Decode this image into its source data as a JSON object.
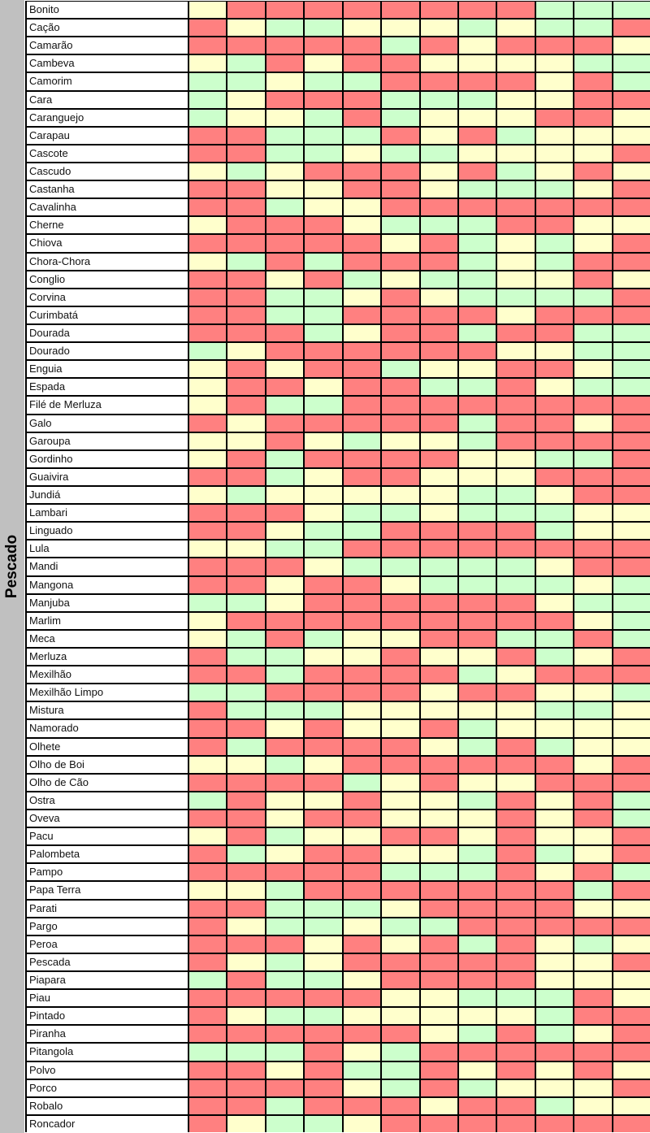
{
  "category_label": "Pescado",
  "colors": {
    "R": "#ff8080",
    "Y": "#ffffcc",
    "G": "#ccffcc"
  },
  "rows": [
    {
      "name": "Bonito",
      "cells": "YRRRRRRRRGGG"
    },
    {
      "name": "Cação",
      "cells": "RYGGYYYGYGGR"
    },
    {
      "name": "Camarão",
      "cells": "RRRRRGRYRRRY"
    },
    {
      "name": "Cambeva",
      "cells": "YGRYRRYYYYGG"
    },
    {
      "name": "Camorim",
      "cells": "GGYGGRRRRYRG"
    },
    {
      "name": "Cara",
      "cells": "GYRRRGGGYYRR"
    },
    {
      "name": "Caranguejo",
      "cells": "GYYGRGYYYRRY"
    },
    {
      "name": "Carapau",
      "cells": "RRGGGRYRGYYY"
    },
    {
      "name": "Cascote",
      "cells": "RRGGYGGYYYYR"
    },
    {
      "name": "Cascudo",
      "cells": "YGYRRRYRGYRY"
    },
    {
      "name": "Castanha",
      "cells": "RRYYRRYGGGYR"
    },
    {
      "name": "Cavalinha",
      "cells": "RRGYYRRRRRRR"
    },
    {
      "name": "Cherne",
      "cells": "YRRRYGGGRRYY"
    },
    {
      "name": "Chiova",
      "cells": "RRRRRYRGYGYR"
    },
    {
      "name": "Chora-Chora",
      "cells": "YGRGRRRGYGRR"
    },
    {
      "name": "Conglio",
      "cells": "RRYRGYGGYYRY"
    },
    {
      "name": "Corvina",
      "cells": "RRGGYRYGGGGR"
    },
    {
      "name": "Curimbatá",
      "cells": "RRGGRRRRYRRR"
    },
    {
      "name": "Dourada",
      "cells": "RRRGYRRGRRGG"
    },
    {
      "name": "Dourado",
      "cells": "GYRRRRRRYYGG"
    },
    {
      "name": "Enguia",
      "cells": "YRYRRGYYRRYG"
    },
    {
      "name": "Espada",
      "cells": "YRRYRRGGRYGG"
    },
    {
      "name": "Filé de Merluza",
      "cells": "YRGGRRRRRRRR"
    },
    {
      "name": "Galo",
      "cells": "RYRRRRRGRRYR"
    },
    {
      "name": "Garoupa",
      "cells": "YYRYGYYGRRRR"
    },
    {
      "name": "Gordinho",
      "cells": "YRGRRRRYYGGR"
    },
    {
      "name": "Guaivira",
      "cells": "RRGYRRYYYRRR"
    },
    {
      "name": "Jundiá",
      "cells": "YGYYYYYGGYRR"
    },
    {
      "name": "Lambari",
      "cells": "RRRYGGYGGGYY"
    },
    {
      "name": "Linguado",
      "cells": "RRYGGRRRRGYY"
    },
    {
      "name": "Lula",
      "cells": "YYGGRRRRRRRR"
    },
    {
      "name": "Mandi",
      "cells": "RRRYGGGGGYRR"
    },
    {
      "name": "Mangona",
      "cells": "RRYRRYGGGGYG"
    },
    {
      "name": "Manjuba",
      "cells": "GGYRRRRRRYGG"
    },
    {
      "name": "Marlim",
      "cells": "YRRRRRRRRRYG"
    },
    {
      "name": "Meca",
      "cells": "YGRGYYRRGGRG"
    },
    {
      "name": "Merluza",
      "cells": "RGGYYRYYRGYR"
    },
    {
      "name": "Mexilhão",
      "cells": "RRGRRRRGYRRR"
    },
    {
      "name": "Mexilhão Limpo",
      "cells": "GGRRRRYRRYYG"
    },
    {
      "name": "Mistura",
      "cells": "RGGGYYYYYGGY"
    },
    {
      "name": "Namorado",
      "cells": "RRYRYYRGYYYY"
    },
    {
      "name": "Olhete",
      "cells": "RGRRRRYGRGYY"
    },
    {
      "name": "Olho de Boi",
      "cells": "YYGYRRRRRRYR"
    },
    {
      "name": "Olho de Cão",
      "cells": "RRRRGYRYYRRR"
    },
    {
      "name": "Ostra",
      "cells": "GRYYRYYGRYRG"
    },
    {
      "name": "Oveva",
      "cells": "RRYRRYYYRYRG"
    },
    {
      "name": "Pacu",
      "cells": "YRGYYRRYRYYR"
    },
    {
      "name": "Palombeta",
      "cells": "RGYRRYYGRGYR"
    },
    {
      "name": "Pampo",
      "cells": "RRRRRGGGRYRG"
    },
    {
      "name": "Papa Terra",
      "cells": "YYGRRRRRRRGR"
    },
    {
      "name": "Parati",
      "cells": "RRGGGYRRRRYY"
    },
    {
      "name": "Pargo",
      "cells": "RYGGYGGRRRRR"
    },
    {
      "name": "Peroa",
      "cells": "RRRYRYRGRYGY"
    },
    {
      "name": "Pescada",
      "cells": "RYGYRRRRRYYR"
    },
    {
      "name": "Piapara",
      "cells": "GRGGYRRRRYYY"
    },
    {
      "name": "Piau",
      "cells": "RRRRRYYGGGRY"
    },
    {
      "name": "Pintado",
      "cells": "RYGGYYYYYGRR"
    },
    {
      "name": "Piranha",
      "cells": "RRRRRRYGRGYR"
    },
    {
      "name": "Pitangola",
      "cells": "GGGRYGRRRRRR"
    },
    {
      "name": "Polvo",
      "cells": "RRYRGGRYRYRY"
    },
    {
      "name": "Porco",
      "cells": "RRRRYGRGYYYR"
    },
    {
      "name": "Robalo",
      "cells": "RRGRRRYRRGYY"
    },
    {
      "name": "Roncador",
      "cells": "RYGGYRRRRRRR"
    }
  ]
}
